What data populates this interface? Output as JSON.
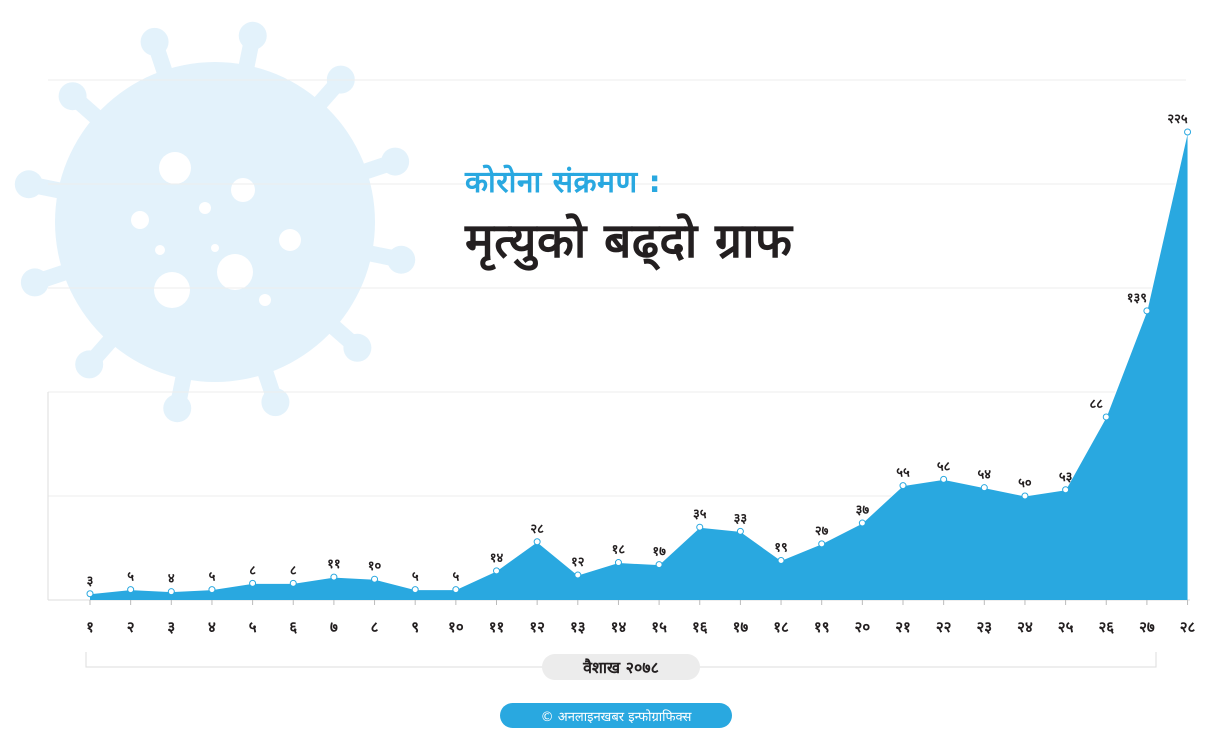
{
  "header": {
    "subtitle": "कोरोना संक्रमण :",
    "title": "मृत्युको बढ्दो ग्राफ"
  },
  "footer": {
    "period_label": "वैशाख २०७८",
    "credit": "© अनलाइनखबर इन्फोग्राफिक्स"
  },
  "colors": {
    "accent": "#29a8e0",
    "virus": "#e3f2fb",
    "title": "#231f20"
  },
  "chart_data": {
    "type": "area",
    "x": [
      "१",
      "२",
      "३",
      "४",
      "५",
      "६",
      "७",
      "८",
      "९",
      "१०",
      "११",
      "१२",
      "१३",
      "१४",
      "१५",
      "१६",
      "१७",
      "१८",
      "१९",
      "२०",
      "२१",
      "२२",
      "२३",
      "२४",
      "२५",
      "२६",
      "२७",
      "२८"
    ],
    "series": [
      {
        "values": [
          3,
          5,
          4,
          5,
          8,
          8,
          11,
          10,
          5,
          5,
          14,
          28,
          12,
          18,
          17,
          35,
          33,
          19,
          27,
          37,
          55,
          58,
          54,
          50,
          53,
          88,
          139,
          225
        ],
        "labels": [
          "३",
          "५",
          "४",
          "५",
          "८",
          "८",
          "११",
          "१०",
          "५",
          "५",
          "१४",
          "२८",
          "१२",
          "१८",
          "१७",
          "३५",
          "३३",
          "१९",
          "२७",
          "३७",
          "५५",
          "५८",
          "५४",
          "५०",
          "५३",
          "८८",
          "१३९",
          "२२५"
        ]
      }
    ],
    "ylim": [
      0,
      250
    ],
    "grid": true,
    "xlabel": "वैशाख २०७८"
  }
}
